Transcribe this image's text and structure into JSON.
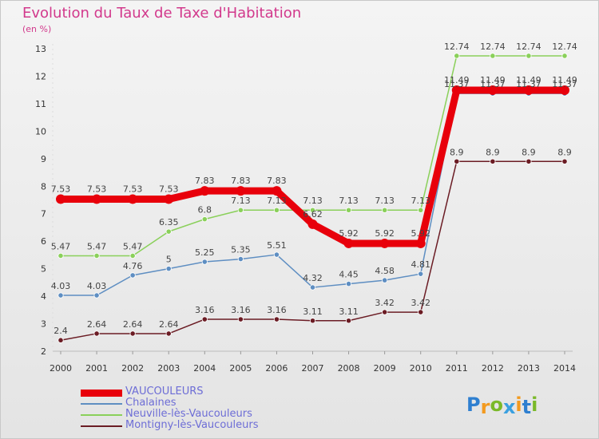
{
  "chart_data": {
    "type": "line",
    "title": "Evolution du Taux de Taxe d'Habitation",
    "unit": "(en %)",
    "x": [
      "2000",
      "2001",
      "2002",
      "2003",
      "2004",
      "2005",
      "2006",
      "2007",
      "2008",
      "2009",
      "2010",
      "2011",
      "2012",
      "2013",
      "2014"
    ],
    "ylim": [
      2,
      13
    ],
    "yticks": [
      "2",
      "3",
      "4",
      "5",
      "6",
      "7",
      "8",
      "9",
      "10",
      "11",
      "12",
      "13"
    ],
    "grid": false,
    "legend_position": "bottom-left",
    "series": [
      {
        "name": "VAUCOULEURS",
        "color": "#e8000b",
        "values": [
          7.53,
          7.53,
          7.53,
          7.53,
          7.83,
          7.83,
          7.83,
          6.62,
          5.92,
          5.92,
          5.92,
          11.49,
          11.49,
          11.49,
          11.49
        ],
        "labels": [
          "7.53",
          "7.53",
          "7.53",
          "7.53",
          "7.83",
          "7.83",
          "7.83",
          "6.62",
          "5.92",
          "5.92",
          "5.92",
          "11.49",
          "11.49",
          "11.49",
          "11.49"
        ]
      },
      {
        "name": "Chalaines",
        "color": "#5e8ec2",
        "values": [
          4.03,
          4.03,
          4.76,
          5,
          5.25,
          5.35,
          5.51,
          4.32,
          4.45,
          4.58,
          4.81,
          11.37,
          11.37,
          11.37,
          11.37
        ],
        "labels": [
          "4.03",
          "4.03",
          "4.76",
          "5",
          "5.25",
          "5.35",
          "5.51",
          "4.32",
          "4.45",
          "4.58",
          "4.81",
          "11.37",
          "11.37",
          "11.37",
          "11.37"
        ]
      },
      {
        "name": "Neuville-lès-Vaucouleurs",
        "color": "#8ad05a",
        "values": [
          5.47,
          5.47,
          5.47,
          6.35,
          6.8,
          7.13,
          7.13,
          7.13,
          7.13,
          7.13,
          7.13,
          12.74,
          12.74,
          12.74,
          12.74
        ],
        "labels": [
          "5.47",
          "5.47",
          "5.47",
          "6.35",
          "6.8",
          "7.13",
          "7.13",
          "7.13",
          "7.13",
          "7.13",
          "7.13",
          "12.74",
          "12.74",
          "12.74",
          "12.74"
        ]
      },
      {
        "name": "Montigny-lès-Vaucouleurs",
        "color": "#6b1c24",
        "values": [
          2.4,
          2.64,
          2.64,
          2.64,
          3.16,
          3.16,
          3.16,
          3.11,
          3.11,
          3.42,
          3.42,
          8.9,
          8.9,
          8.9,
          8.9
        ],
        "labels": [
          "2.4",
          "2.64",
          "2.64",
          "2.64",
          "3.16",
          "3.16",
          "3.16",
          "3.11",
          "3.11",
          "3.42",
          "3.42",
          "8.9",
          "8.9",
          "8.9",
          "8.9"
        ]
      }
    ]
  },
  "logo": {
    "letters": [
      "P",
      "r",
      "o",
      "x",
      "i",
      "t",
      "i"
    ],
    "colors": [
      "#2e7fd0",
      "#f39a1f",
      "#7ab929",
      "#3aa0e0",
      "#f39a1f",
      "#2e7fd0",
      "#7ab929"
    ]
  }
}
